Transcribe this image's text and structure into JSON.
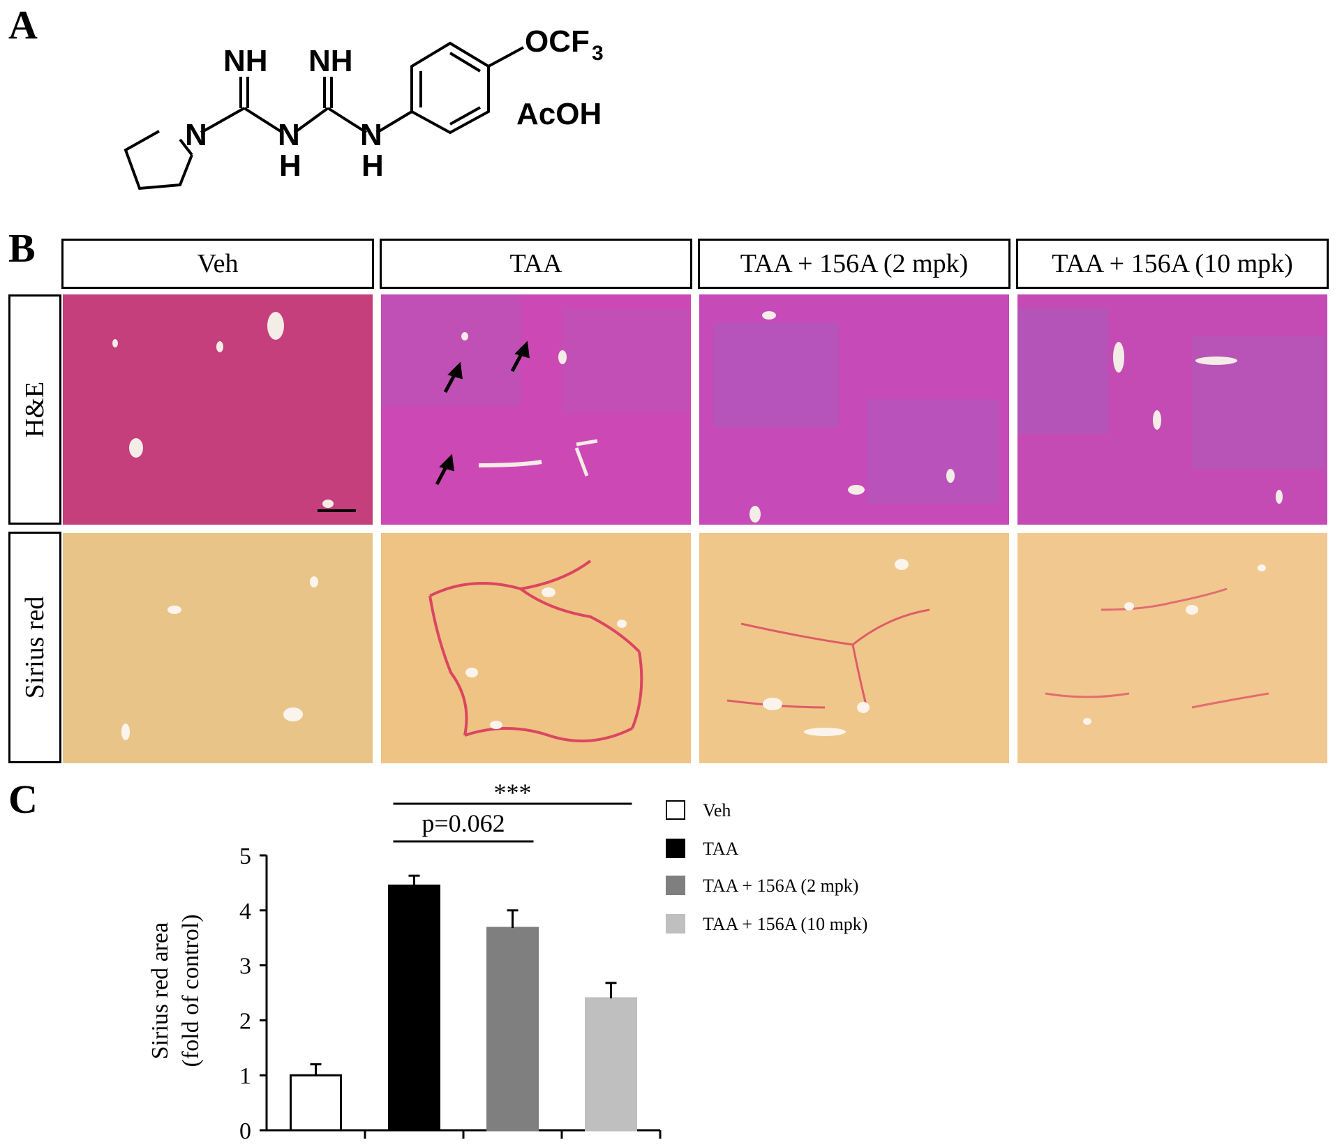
{
  "panels": {
    "a": "A",
    "b": "B",
    "c": "C"
  },
  "chemical": {
    "labels": {
      "nh_left": "NH",
      "nh_right": "NH",
      "n_ring": "N",
      "n_mid": "N",
      "h_mid": "H",
      "n_right": "N",
      "h_right": "H",
      "ocf": "OCF",
      "sub3": "3",
      "acoh": "AcOH"
    }
  },
  "histology": {
    "columns": [
      "Veh",
      "TAA",
      "TAA + 156A (2 mpk)",
      "TAA + 156A (10 mpk)"
    ],
    "rows": [
      "H&E",
      "Sirius red"
    ],
    "colors": {
      "he": "#c84a9a",
      "sirius": "#efc88a",
      "fibrosis": "#d8305a"
    }
  },
  "chart_data": {
    "type": "bar",
    "categories": [
      "Veh",
      "TAA",
      "TAA + 156A (2 mpk)",
      "TAA + 156A (10 mpk)"
    ],
    "values": [
      1.0,
      4.45,
      3.68,
      2.4
    ],
    "errors": [
      0.2,
      0.18,
      0.32,
      0.28
    ],
    "colors": [
      "#ffffff",
      "#000000",
      "#7f7f7f",
      "#bfbfbf"
    ],
    "ylabel_line1": "Sirius red area",
    "ylabel_line2": "(fold of control)",
    "ylim": [
      0,
      5
    ],
    "yticks": [
      "0",
      "1",
      "2",
      "3",
      "4",
      "5"
    ],
    "annotations": [
      {
        "text": "***",
        "from": 1,
        "to": 3
      },
      {
        "text": "p=0.062",
        "from": 1,
        "to": 2
      }
    ],
    "legend": [
      "Veh",
      "TAA",
      "TAA + 156A (2 mpk)",
      "TAA + 156A (10 mpk)"
    ],
    "legend_position": "right"
  }
}
